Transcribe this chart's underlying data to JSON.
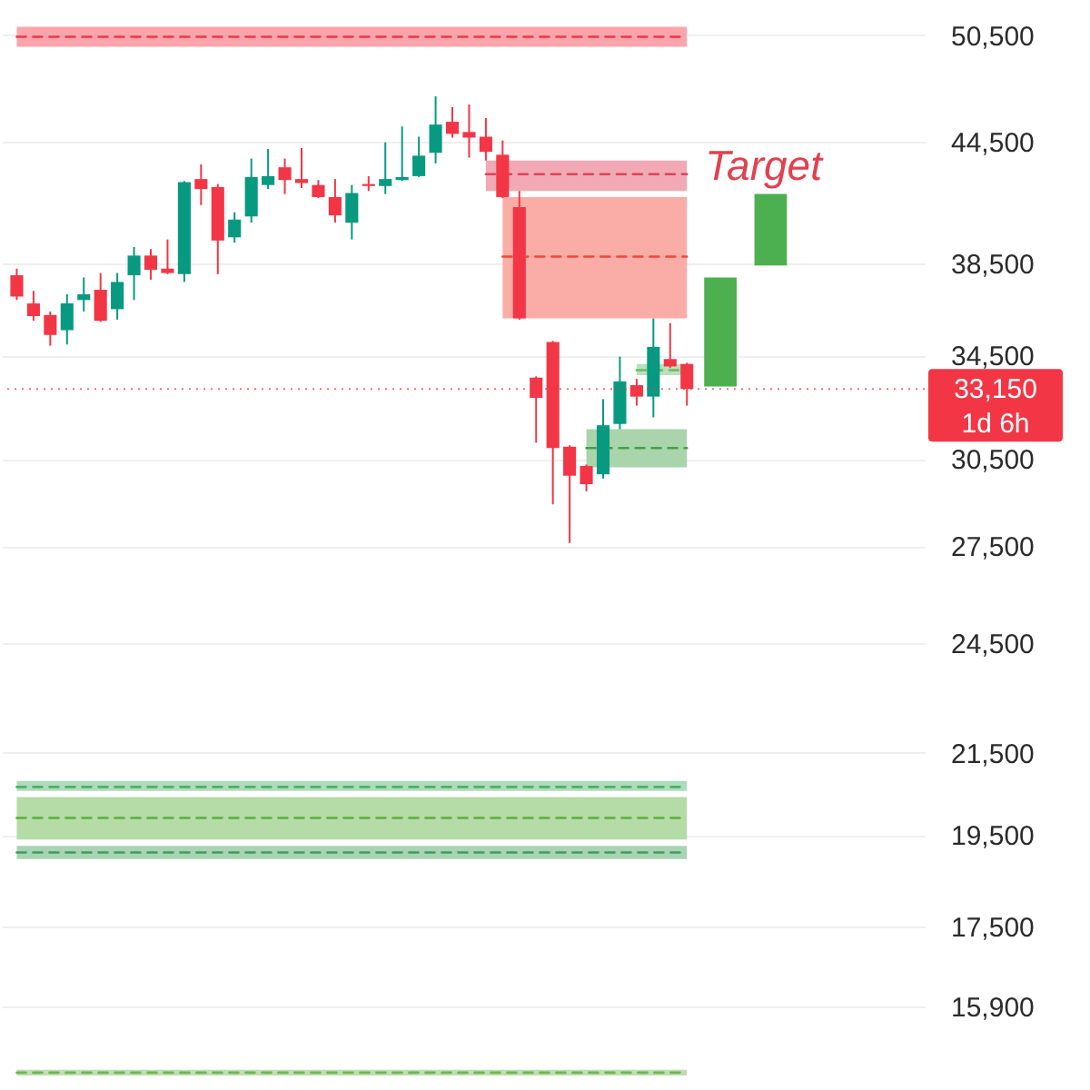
{
  "chart_data": {
    "type": "candlestick",
    "categories": [
      null,
      null,
      null,
      null,
      null,
      null,
      null,
      null,
      null,
      null,
      null,
      null,
      null,
      null,
      null,
      null,
      null,
      null,
      null,
      null,
      null,
      null,
      null,
      null,
      null,
      null,
      null,
      null,
      null,
      null,
      null,
      null,
      null,
      null,
      null,
      null,
      null,
      null,
      null,
      null,
      null,
      null,
      null,
      null,
      null,
      null,
      null,
      null,
      null,
      null,
      null,
      null,
      null,
      null
    ],
    "ohlc": [
      [
        37950,
        38250,
        36850,
        37000
      ],
      [
        36700,
        37250,
        35950,
        36150
      ],
      [
        36200,
        36350,
        34900,
        35350
      ],
      [
        35550,
        37100,
        34950,
        36700
      ],
      [
        36850,
        37850,
        36350,
        37100
      ],
      [
        37300,
        38050,
        35900,
        35950
      ],
      [
        36450,
        38050,
        36000,
        37650
      ],
      [
        37950,
        39250,
        36850,
        38850
      ],
      [
        38850,
        39150,
        37750,
        38200
      ],
      [
        38250,
        39600,
        38000,
        38050
      ],
      [
        38000,
        42450,
        37650,
        42400
      ],
      [
        42550,
        43300,
        41250,
        42050
      ],
      [
        42150,
        42300,
        38000,
        39550
      ],
      [
        39700,
        40900,
        39450,
        40550
      ],
      [
        40700,
        43600,
        40400,
        42650
      ],
      [
        42250,
        44100,
        42050,
        42700
      ],
      [
        43150,
        43600,
        41800,
        42500
      ],
      [
        42550,
        44150,
        42100,
        42350
      ],
      [
        42250,
        42500,
        41600,
        41650
      ],
      [
        41650,
        42550,
        40400,
        40750
      ],
      [
        40400,
        42250,
        39600,
        41850
      ],
      [
        42300,
        42700,
        41950,
        42200
      ],
      [
        42200,
        44450,
        41800,
        42550
      ],
      [
        42500,
        45300,
        42450,
        42650
      ],
      [
        42700,
        44750,
        42650,
        43750
      ],
      [
        43900,
        46950,
        43350,
        45400
      ],
      [
        45550,
        46350,
        44700,
        44900
      ],
      [
        45000,
        46500,
        43650,
        44700
      ],
      [
        44750,
        45750,
        43500,
        43950
      ],
      [
        43800,
        44550,
        41600,
        41650
      ],
      [
        41150,
        41950,
        36000,
        36050
      ],
      [
        33600,
        33650,
        31100,
        32800
      ],
      [
        35050,
        35100,
        28900,
        30900
      ],
      [
        30950,
        31000,
        27600,
        29900
      ],
      [
        30250,
        30300,
        29350,
        29600
      ],
      [
        29950,
        32750,
        29800,
        31750
      ],
      [
        31800,
        34450,
        31600,
        33450
      ],
      [
        33300,
        33550,
        32500,
        32850
      ],
      [
        32850,
        36050,
        32050,
        34850
      ],
      [
        34350,
        35850,
        34000,
        34050
      ],
      [
        34150,
        34200,
        32500,
        33150
      ],
      null,
      null,
      null,
      null,
      null,
      null,
      null,
      null,
      null,
      null,
      null,
      null,
      null
    ],
    "colors": [
      "#f23645",
      "#f23645",
      "#f23645",
      "#089981",
      "#089981",
      "#f23645",
      "#089981",
      "#089981",
      "#f23645",
      "#f23645",
      "#089981",
      "#f23645",
      "#f23645",
      "#089981",
      "#089981",
      "#089981",
      "#f23645",
      "#f23645",
      "#f23645",
      "#f23645",
      "#089981",
      "#f23645",
      "#089981",
      "#089981",
      "#089981",
      "#089981",
      "#f23645",
      "#f23645",
      "#f23645",
      "#f23645",
      "#f23645",
      "#f23645",
      "#f23645",
      "#f23645",
      "#f23645",
      "#089981",
      "#089981",
      "#f23645",
      "#089981",
      "#f23645",
      "#f23645",
      null,
      null,
      null,
      null,
      null,
      null,
      null,
      null,
      null,
      null,
      null,
      null,
      null
    ],
    "series": [
      {
        "type": "line",
        "color": "#f23645",
        "line_style": "dashed",
        "values": [
          50400,
          50400,
          50400,
          50400,
          50400,
          50400,
          50400,
          50400,
          50400,
          50400,
          50400,
          50400,
          50400,
          50400,
          50400,
          50400,
          50400,
          50400,
          50400,
          50400,
          50400,
          50400,
          50400,
          50400,
          50400,
          50400,
          50400,
          50400,
          50400,
          50400,
          50400,
          50400,
          50400,
          50400,
          50400,
          50400,
          50400,
          50400,
          50400,
          50400,
          50400,
          null,
          null,
          null,
          null,
          null,
          null,
          null,
          null,
          null,
          null,
          null,
          null,
          null
        ],
        "lower": [
          49800,
          49800,
          49800,
          49800,
          49800,
          49800,
          49800,
          49800,
          49800,
          49800,
          49800,
          49800,
          49800,
          49800,
          49800,
          49800,
          49800,
          49800,
          49800,
          49800,
          49800,
          49800,
          49800,
          49800,
          49800,
          49800,
          49800,
          49800,
          49800,
          49800,
          49800,
          49800,
          49800,
          49800,
          49800,
          49800,
          49800,
          49800,
          49800,
          49800,
          49800,
          null,
          null,
          null,
          null,
          null,
          null,
          null,
          null,
          null,
          null,
          null,
          null,
          null
        ],
        "upper": [
          51000,
          51000,
          51000,
          51000,
          51000,
          51000,
          51000,
          51000,
          51000,
          51000,
          51000,
          51000,
          51000,
          51000,
          51000,
          51000,
          51000,
          51000,
          51000,
          51000,
          51000,
          51000,
          51000,
          51000,
          51000,
          51000,
          51000,
          51000,
          51000,
          51000,
          51000,
          51000,
          51000,
          51000,
          51000,
          51000,
          51000,
          51000,
          51000,
          51000,
          51000,
          null,
          null,
          null,
          null,
          null,
          null,
          null,
          null,
          null,
          null,
          null,
          null,
          null
        ]
      },
      {
        "type": "line",
        "color": "#e0405a",
        "line_style": "dashed",
        "values": [
          null,
          null,
          null,
          null,
          null,
          null,
          null,
          null,
          null,
          null,
          null,
          null,
          null,
          null,
          null,
          null,
          null,
          null,
          null,
          null,
          null,
          null,
          null,
          null,
          null,
          null,
          null,
          null,
          42800,
          42800,
          42800,
          42800,
          42800,
          42800,
          42800,
          42800,
          42800,
          42800,
          42800,
          42800,
          42800,
          null,
          null,
          null,
          null,
          null,
          null,
          null,
          null,
          null,
          null,
          null,
          null,
          null
        ],
        "lower": [
          null,
          null,
          null,
          null,
          null,
          null,
          null,
          null,
          null,
          null,
          null,
          null,
          null,
          null,
          null,
          null,
          null,
          null,
          null,
          null,
          null,
          null,
          null,
          null,
          null,
          null,
          null,
          null,
          41950,
          41950,
          41950,
          41950,
          41950,
          41950,
          41950,
          41950,
          41950,
          41950,
          41950,
          41950,
          41950,
          null,
          null,
          null,
          null,
          null,
          null,
          null,
          null,
          null,
          null,
          null,
          null,
          null
        ],
        "upper": [
          null,
          null,
          null,
          null,
          null,
          null,
          null,
          null,
          null,
          null,
          null,
          null,
          null,
          null,
          null,
          null,
          null,
          null,
          null,
          null,
          null,
          null,
          null,
          null,
          null,
          null,
          null,
          null,
          43500,
          43500,
          43500,
          43500,
          43500,
          43500,
          43500,
          43500,
          43500,
          43500,
          43500,
          43500,
          43500,
          null,
          null,
          null,
          null,
          null,
          null,
          null,
          null,
          null,
          null,
          null,
          null,
          null
        ]
      },
      {
        "type": "line",
        "color": "#f5463a",
        "line_style": "dashed",
        "values": [
          null,
          null,
          null,
          null,
          null,
          null,
          null,
          null,
          null,
          null,
          null,
          null,
          null,
          null,
          null,
          null,
          null,
          null,
          null,
          null,
          null,
          null,
          null,
          null,
          null,
          null,
          null,
          null,
          null,
          38800,
          38800,
          38800,
          38800,
          38800,
          38800,
          38800,
          38800,
          38800,
          38800,
          38800,
          38800,
          null,
          null,
          null,
          null,
          null,
          null,
          null,
          null,
          null,
          null,
          null,
          null,
          null
        ],
        "lower": [
          null,
          null,
          null,
          null,
          null,
          null,
          null,
          null,
          null,
          null,
          null,
          null,
          null,
          null,
          null,
          null,
          null,
          null,
          null,
          null,
          null,
          null,
          null,
          null,
          null,
          null,
          null,
          null,
          null,
          36050,
          36050,
          36050,
          36050,
          36050,
          36050,
          36050,
          36050,
          36050,
          36050,
          36050,
          36050,
          null,
          null,
          null,
          null,
          null,
          null,
          null,
          null,
          null,
          null,
          null,
          null,
          null
        ],
        "upper": [
          null,
          null,
          null,
          null,
          null,
          null,
          null,
          null,
          null,
          null,
          null,
          null,
          null,
          null,
          null,
          null,
          null,
          null,
          null,
          null,
          null,
          null,
          null,
          null,
          null,
          null,
          null,
          null,
          null,
          41650,
          41650,
          41650,
          41650,
          41650,
          41650,
          41650,
          41650,
          41650,
          41650,
          41650,
          41650,
          null,
          null,
          null,
          null,
          null,
          null,
          null,
          null,
          null,
          null,
          null,
          null,
          null
        ]
      },
      {
        "type": "line",
        "color": "#43a047",
        "line_style": "dashed",
        "values": [
          null,
          null,
          null,
          null,
          null,
          null,
          null,
          null,
          null,
          null,
          null,
          null,
          null,
          null,
          null,
          null,
          null,
          null,
          null,
          null,
          null,
          null,
          null,
          null,
          null,
          null,
          null,
          null,
          null,
          null,
          null,
          null,
          null,
          null,
          30900,
          30900,
          30900,
          30900,
          30900,
          30900,
          30900,
          null,
          null,
          null,
          null,
          null,
          null,
          null,
          null,
          null,
          null,
          null,
          null,
          null
        ],
        "lower": [
          null,
          null,
          null,
          null,
          null,
          null,
          null,
          null,
          null,
          null,
          null,
          null,
          null,
          null,
          null,
          null,
          null,
          null,
          null,
          null,
          null,
          null,
          null,
          null,
          null,
          null,
          null,
          null,
          null,
          null,
          null,
          null,
          null,
          null,
          30200,
          30200,
          30200,
          30200,
          30200,
          30200,
          30200,
          null,
          null,
          null,
          null,
          null,
          null,
          null,
          null,
          null,
          null,
          null,
          null,
          null
        ],
        "upper": [
          null,
          null,
          null,
          null,
          null,
          null,
          null,
          null,
          null,
          null,
          null,
          null,
          null,
          null,
          null,
          null,
          null,
          null,
          null,
          null,
          null,
          null,
          null,
          null,
          null,
          null,
          null,
          null,
          null,
          null,
          null,
          null,
          null,
          null,
          31600,
          31600,
          31600,
          31600,
          31600,
          31600,
          31600,
          null,
          null,
          null,
          null,
          null,
          null,
          null,
          null,
          null,
          null,
          null,
          null,
          null
        ]
      },
      {
        "type": "line",
        "color": "#66bb6a",
        "line_style": "dashed",
        "values": [
          null,
          null,
          null,
          null,
          null,
          null,
          null,
          null,
          null,
          null,
          null,
          null,
          null,
          null,
          null,
          null,
          null,
          null,
          null,
          null,
          null,
          null,
          null,
          null,
          null,
          null,
          null,
          null,
          null,
          null,
          null,
          null,
          null,
          null,
          null,
          null,
          null,
          33900,
          33900,
          33900,
          33900,
          null,
          null,
          null,
          null,
          null,
          null,
          null,
          null,
          null,
          null,
          null,
          null,
          null
        ],
        "lower": [
          null,
          null,
          null,
          null,
          null,
          null,
          null,
          null,
          null,
          null,
          null,
          null,
          null,
          null,
          null,
          null,
          null,
          null,
          null,
          null,
          null,
          null,
          null,
          null,
          null,
          null,
          null,
          null,
          null,
          null,
          null,
          null,
          null,
          null,
          null,
          null,
          null,
          33700,
          33700,
          33700,
          33700,
          null,
          null,
          null,
          null,
          null,
          null,
          null,
          null,
          null,
          null,
          null,
          null,
          null
        ],
        "upper": [
          null,
          null,
          null,
          null,
          null,
          null,
          null,
          null,
          null,
          null,
          null,
          null,
          null,
          null,
          null,
          null,
          null,
          null,
          null,
          null,
          null,
          null,
          null,
          null,
          null,
          null,
          null,
          null,
          null,
          null,
          null,
          null,
          null,
          null,
          null,
          null,
          null,
          34150,
          34150,
          34150,
          34150,
          null,
          null,
          null,
          null,
          null,
          null,
          null,
          null,
          null,
          null,
          null,
          null,
          null
        ]
      },
      {
        "type": "line",
        "color": "#4caf6a",
        "line_style": "dashed",
        "values": [
          20650,
          20650,
          20650,
          20650,
          20650,
          20650,
          20650,
          20650,
          20650,
          20650,
          20650,
          20650,
          20650,
          20650,
          20650,
          20650,
          20650,
          20650,
          20650,
          20650,
          20650,
          20650,
          20650,
          20650,
          20650,
          20650,
          20650,
          20650,
          20650,
          20650,
          20650,
          20650,
          20650,
          20650,
          20650,
          20650,
          20650,
          20650,
          20650,
          20650,
          20650,
          null,
          null,
          null,
          null,
          null,
          null,
          null,
          null,
          null,
          null,
          null,
          null,
          null
        ],
        "lower": [
          20550,
          20550,
          20550,
          20550,
          20550,
          20550,
          20550,
          20550,
          20550,
          20550,
          20550,
          20550,
          20550,
          20550,
          20550,
          20550,
          20550,
          20550,
          20550,
          20550,
          20550,
          20550,
          20550,
          20550,
          20550,
          20550,
          20550,
          20550,
          20550,
          20550,
          20550,
          20550,
          20550,
          20550,
          20550,
          20550,
          20550,
          20550,
          20550,
          20550,
          20550,
          null,
          null,
          null,
          null,
          null,
          null,
          null,
          null,
          null,
          null,
          null,
          null,
          null
        ],
        "upper": [
          20800,
          20800,
          20800,
          20800,
          20800,
          20800,
          20800,
          20800,
          20800,
          20800,
          20800,
          20800,
          20800,
          20800,
          20800,
          20800,
          20800,
          20800,
          20800,
          20800,
          20800,
          20800,
          20800,
          20800,
          20800,
          20800,
          20800,
          20800,
          20800,
          20800,
          20800,
          20800,
          20800,
          20800,
          20800,
          20800,
          20800,
          20800,
          20800,
          20800,
          20800,
          null,
          null,
          null,
          null,
          null,
          null,
          null,
          null,
          null,
          null,
          null,
          null,
          null
        ]
      },
      {
        "type": "line",
        "color": "#5aae3c",
        "line_style": "dashed",
        "values": [
          19900,
          19900,
          19900,
          19900,
          19900,
          19900,
          19900,
          19900,
          19900,
          19900,
          19900,
          19900,
          19900,
          19900,
          19900,
          19900,
          19900,
          19900,
          19900,
          19900,
          19900,
          19900,
          19900,
          19900,
          19900,
          19900,
          19900,
          19900,
          19900,
          19900,
          19900,
          19900,
          19900,
          19900,
          19900,
          19900,
          19900,
          19900,
          19900,
          19900,
          19900,
          null,
          null,
          null,
          null,
          null,
          null,
          null,
          null,
          null,
          null,
          null,
          null,
          null
        ],
        "lower": [
          19400,
          19400,
          19400,
          19400,
          19400,
          19400,
          19400,
          19400,
          19400,
          19400,
          19400,
          19400,
          19400,
          19400,
          19400,
          19400,
          19400,
          19400,
          19400,
          19400,
          19400,
          19400,
          19400,
          19400,
          19400,
          19400,
          19400,
          19400,
          19400,
          19400,
          19400,
          19400,
          19400,
          19400,
          19400,
          19400,
          19400,
          19400,
          19400,
          19400,
          19400,
          null,
          null,
          null,
          null,
          null,
          null,
          null,
          null,
          null,
          null,
          null,
          null,
          null
        ],
        "upper": [
          20400,
          20400,
          20400,
          20400,
          20400,
          20400,
          20400,
          20400,
          20400,
          20400,
          20400,
          20400,
          20400,
          20400,
          20400,
          20400,
          20400,
          20400,
          20400,
          20400,
          20400,
          20400,
          20400,
          20400,
          20400,
          20400,
          20400,
          20400,
          20400,
          20400,
          20400,
          20400,
          20400,
          20400,
          20400,
          20400,
          20400,
          20400,
          20400,
          20400,
          20400,
          null,
          null,
          null,
          null,
          null,
          null,
          null,
          null,
          null,
          null,
          null,
          null,
          null
        ]
      },
      {
        "type": "line",
        "color": "#3d9e5a",
        "line_style": "dashed",
        "values": [
          19100,
          19100,
          19100,
          19100,
          19100,
          19100,
          19100,
          19100,
          19100,
          19100,
          19100,
          19100,
          19100,
          19100,
          19100,
          19100,
          19100,
          19100,
          19100,
          19100,
          19100,
          19100,
          19100,
          19100,
          19100,
          19100,
          19100,
          19100,
          19100,
          19100,
          19100,
          19100,
          19100,
          19100,
          19100,
          19100,
          19100,
          19100,
          19100,
          19100,
          19100,
          null,
          null,
          null,
          null,
          null,
          null,
          null,
          null,
          null,
          null,
          null,
          null,
          null
        ],
        "lower": [
          18950,
          18950,
          18950,
          18950,
          18950,
          18950,
          18950,
          18950,
          18950,
          18950,
          18950,
          18950,
          18950,
          18950,
          18950,
          18950,
          18950,
          18950,
          18950,
          18950,
          18950,
          18950,
          18950,
          18950,
          18950,
          18950,
          18950,
          18950,
          18950,
          18950,
          18950,
          18950,
          18950,
          18950,
          18950,
          18950,
          18950,
          18950,
          18950,
          18950,
          18950,
          null,
          null,
          null,
          null,
          null,
          null,
          null,
          null,
          null,
          null,
          null,
          null,
          null
        ],
        "upper": [
          19250,
          19250,
          19250,
          19250,
          19250,
          19250,
          19250,
          19250,
          19250,
          19250,
          19250,
          19250,
          19250,
          19250,
          19250,
          19250,
          19250,
          19250,
          19250,
          19250,
          19250,
          19250,
          19250,
          19250,
          19250,
          19250,
          19250,
          19250,
          19250,
          19250,
          19250,
          19250,
          19250,
          19250,
          19250,
          19250,
          19250,
          19250,
          19250,
          19250,
          19250,
          null,
          null,
          null,
          null,
          null,
          null,
          null,
          null,
          null,
          null,
          null,
          null,
          null
        ]
      },
      {
        "type": "line",
        "color": "#6cb850",
        "line_style": "dashed",
        "values": [
          14700,
          14700,
          14700,
          14700,
          14700,
          14700,
          14700,
          14700,
          14700,
          14700,
          14700,
          14700,
          14700,
          14700,
          14700,
          14700,
          14700,
          14700,
          14700,
          14700,
          14700,
          14700,
          14700,
          14700,
          14700,
          14700,
          14700,
          14700,
          14700,
          14700,
          14700,
          14700,
          14700,
          14700,
          14700,
          14700,
          14700,
          14700,
          14700,
          14700,
          14700,
          null,
          null,
          null,
          null,
          null,
          null,
          null,
          null,
          null,
          null,
          null,
          null,
          null
        ],
        "lower": [
          14650,
          14650,
          14650,
          14650,
          14650,
          14650,
          14650,
          14650,
          14650,
          14650,
          14650,
          14650,
          14650,
          14650,
          14650,
          14650,
          14650,
          14650,
          14650,
          14650,
          14650,
          14650,
          14650,
          14650,
          14650,
          14650,
          14650,
          14650,
          14650,
          14650,
          14650,
          14650,
          14650,
          14650,
          14650,
          14650,
          14650,
          14650,
          14650,
          14650,
          14650,
          null,
          null,
          null,
          null,
          null,
          null,
          null,
          null,
          null,
          null,
          null,
          null,
          null
        ],
        "upper": [
          14750,
          14750,
          14750,
          14750,
          14750,
          14750,
          14750,
          14750,
          14750,
          14750,
          14750,
          14750,
          14750,
          14750,
          14750,
          14750,
          14750,
          14750,
          14750,
          14750,
          14750,
          14750,
          14750,
          14750,
          14750,
          14750,
          14750,
          14750,
          14750,
          14750,
          14750,
          14750,
          14750,
          14750,
          14750,
          14750,
          14750,
          14750,
          14750,
          14750,
          14750,
          null,
          null,
          null,
          null,
          null,
          null,
          null,
          null,
          null,
          null,
          null,
          null,
          null
        ]
      },
      {
        "type": "bar",
        "color": "#4caf50",
        "base": [
          null,
          null,
          null,
          null,
          null,
          null,
          null,
          null,
          null,
          null,
          null,
          null,
          null,
          null,
          null,
          null,
          null,
          null,
          null,
          null,
          null,
          null,
          null,
          null,
          null,
          null,
          null,
          null,
          null,
          null,
          null,
          null,
          null,
          null,
          null,
          null,
          null,
          null,
          null,
          null,
          null,
          null,
          33250,
          null,
          null,
          38400,
          null,
          null,
          null,
          null,
          null,
          null,
          null,
          null
        ],
        "values": [
          null,
          null,
          null,
          null,
          null,
          null,
          null,
          null,
          null,
          null,
          null,
          null,
          null,
          null,
          null,
          null,
          null,
          null,
          null,
          null,
          null,
          null,
          null,
          null,
          null,
          null,
          null,
          null,
          null,
          null,
          null,
          null,
          null,
          null,
          null,
          null,
          null,
          null,
          null,
          null,
          null,
          null,
          4600,
          null,
          null,
          3400,
          null,
          null,
          null,
          null,
          null,
          null,
          null,
          null
        ]
      }
    ],
    "ylim": [
      14400,
      52650
    ],
    "yticks": [
      {
        "value": 15900,
        "label": "15,900"
      },
      {
        "value": 17500,
        "label": "17,500"
      },
      {
        "value": 19500,
        "label": "19,500"
      },
      {
        "value": 21500,
        "label": "21,500"
      },
      {
        "value": 24500,
        "label": "24,500"
      },
      {
        "value": 27500,
        "label": "27,500"
      },
      {
        "value": 30500,
        "label": "30,500"
      },
      {
        "value": 34500,
        "label": "34,500"
      },
      {
        "value": 38500,
        "label": "38,500"
      },
      {
        "value": 44500,
        "label": "44,500"
      },
      {
        "value": 50500,
        "label": "50,500"
      }
    ],
    "log": true,
    "grid": "y",
    "tick_labels": "y",
    "ref_lines": [
      {
        "axis": "y",
        "value": 33150,
        "label": "33,150",
        "color": "#f23645",
        "line_style": "dotted"
      }
    ],
    "annotations": [
      "Target",
      "1d 6h"
    ]
  }
}
